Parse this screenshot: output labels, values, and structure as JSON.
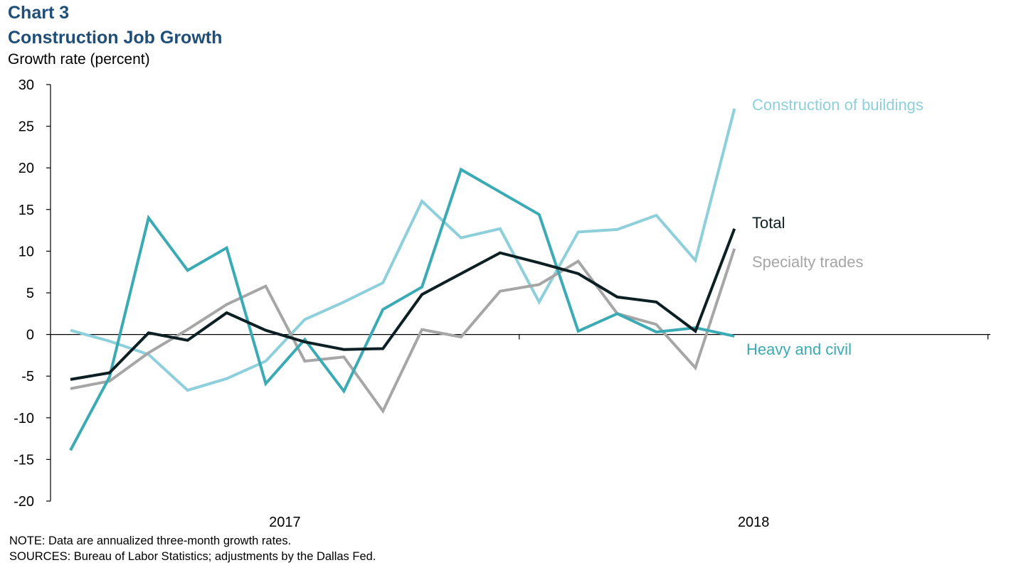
{
  "header": {
    "chart_number": "Chart 3",
    "title": "Construction Job Growth",
    "y_axis_title": "Growth rate (percent)"
  },
  "footer": {
    "note": "NOTE: Data are annualized three-month growth rates.",
    "sources": "SOURCES: Bureau of Labor Statistics; adjustments by the Dallas Fed."
  },
  "chart_data": {
    "type": "line",
    "title": "Construction Job Growth",
    "ylabel": "Growth rate (percent)",
    "xlabel": "",
    "ylim": [
      -20,
      30
    ],
    "yticks": [
      30,
      25,
      20,
      15,
      10,
      5,
      0,
      -5,
      -10,
      -15,
      -20
    ],
    "year_labels": [
      {
        "label": "2017",
        "at_index": 6
      },
      {
        "label": "2018",
        "at_index": 18
      }
    ],
    "x_count": 18,
    "axis_ticks_at": [
      0,
      12,
      24
    ],
    "grid": false,
    "series": [
      {
        "name": "Construction of buildings",
        "color": "#8dd0db",
        "width": 4,
        "values": [
          0.5,
          -0.8,
          -2.4,
          -6.7,
          -5.3,
          -3.2,
          1.8,
          3.9,
          6.2,
          16.0,
          11.6,
          12.7,
          3.9,
          12.3,
          12.6,
          14.3,
          8.9,
          27.1
        ]
      },
      {
        "name": "Specialty trades",
        "color": "#a6a6a6",
        "width": 4,
        "values": [
          -6.5,
          -5.6,
          -2.2,
          0.6,
          3.6,
          5.8,
          -3.2,
          -2.7,
          -9.2,
          0.6,
          -0.3,
          5.2,
          6.0,
          8.8,
          2.5,
          1.2,
          -4.0,
          10.3
        ]
      },
      {
        "name": "Heavy and civil",
        "color": "#3aaab5",
        "width": 4,
        "values": [
          -13.9,
          -5.1,
          14.0,
          7.7,
          10.4,
          -5.9,
          -0.6,
          -6.8,
          3.0,
          5.7,
          19.8,
          17.1,
          14.4,
          0.4,
          2.5,
          0.3,
          0.8,
          -0.2
        ]
      },
      {
        "name": "Total",
        "color": "#0c2024",
        "width": 4,
        "values": [
          -5.4,
          -4.6,
          0.2,
          -0.7,
          2.6,
          0.5,
          -0.9,
          -1.8,
          -1.7,
          4.8,
          7.3,
          9.8,
          8.6,
          7.3,
          4.5,
          3.9,
          0.4,
          12.7
        ]
      }
    ]
  }
}
